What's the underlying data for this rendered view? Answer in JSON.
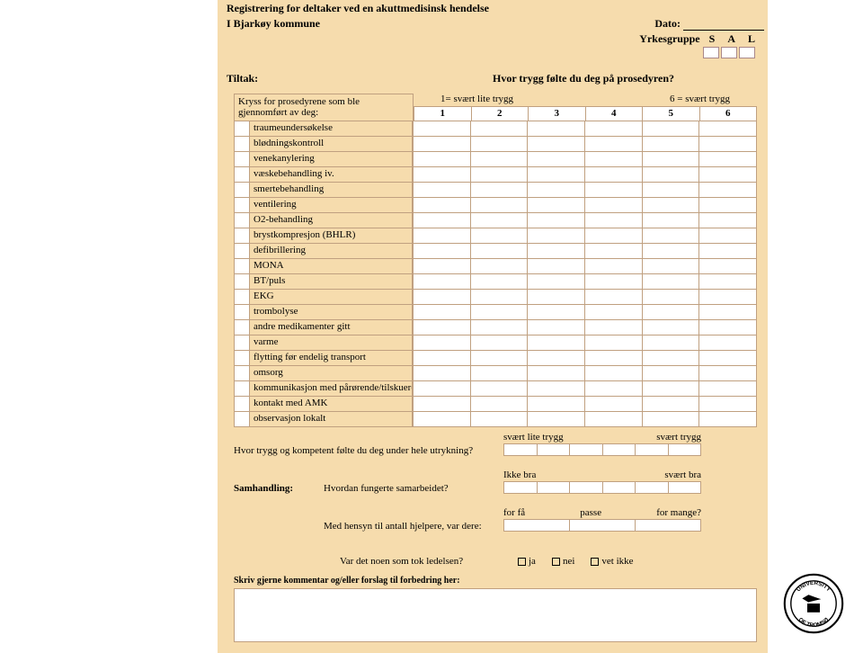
{
  "colors": {
    "form_bg": "#f6dcad",
    "cell_border": "#c0a080",
    "cell_bg": "#ffffff",
    "text": "#000000"
  },
  "header": {
    "title": "Registrering for deltaker ved en akuttmedisinsk hendelse",
    "org_prefix": "I",
    "org": "Bjarkøy kommune",
    "dato_label": "Dato:",
    "yrkesgruppe_label": "Yrkesgruppe",
    "yrk_letters": [
      "S",
      "A",
      "L"
    ]
  },
  "section": {
    "tiltak": "Tiltak:",
    "prosedyren_q": "Hvor trygg følte du deg på prosedyren?"
  },
  "procedures": {
    "intro": "Kryss for prosedyrene som ble gjennomført av deg:",
    "scale_left": "1= svært lite trygg",
    "scale_right": "6 = svært trygg",
    "scale_nums": [
      "1",
      "2",
      "3",
      "4",
      "5",
      "6"
    ],
    "rows": [
      "traumeundersøkelse",
      "blødningskontroll",
      "venekanylering",
      "væskebehandling iv.",
      "smertebehandling",
      "ventilering",
      "O2-behandling",
      "brystkompresjon (BHLR)",
      "defibrillering",
      "MONA",
      "BT/puls",
      "EKG",
      "trombolyse",
      "andre medikamenter gitt",
      "varme",
      "flytting før endelig transport",
      "omsorg",
      "kommunikasjon med pårørende/tilskuere",
      "kontakt med AMK",
      "observasjon lokalt"
    ]
  },
  "q_utrykning": {
    "label": "Hvor trygg og kompetent følte du deg under hele utrykning?",
    "left": "svært lite trygg",
    "right": "svært trygg"
  },
  "samhandling": {
    "section": "Samhandling:",
    "q": "Hvordan fungerte samarbeidet?",
    "left": "Ikke bra",
    "right": "svært bra"
  },
  "hjelpere": {
    "q": "Med hensyn til antall hjelpere, var dere:",
    "opts": [
      "for få",
      "passe",
      "for mange?"
    ]
  },
  "ledelse": {
    "q": "Var det noen som tok ledelsen?",
    "opts": [
      "ja",
      "nei",
      "vet ikke"
    ]
  },
  "comment_label": "Skriv gjerne kommentar og/eller forslag til forbedring her:"
}
